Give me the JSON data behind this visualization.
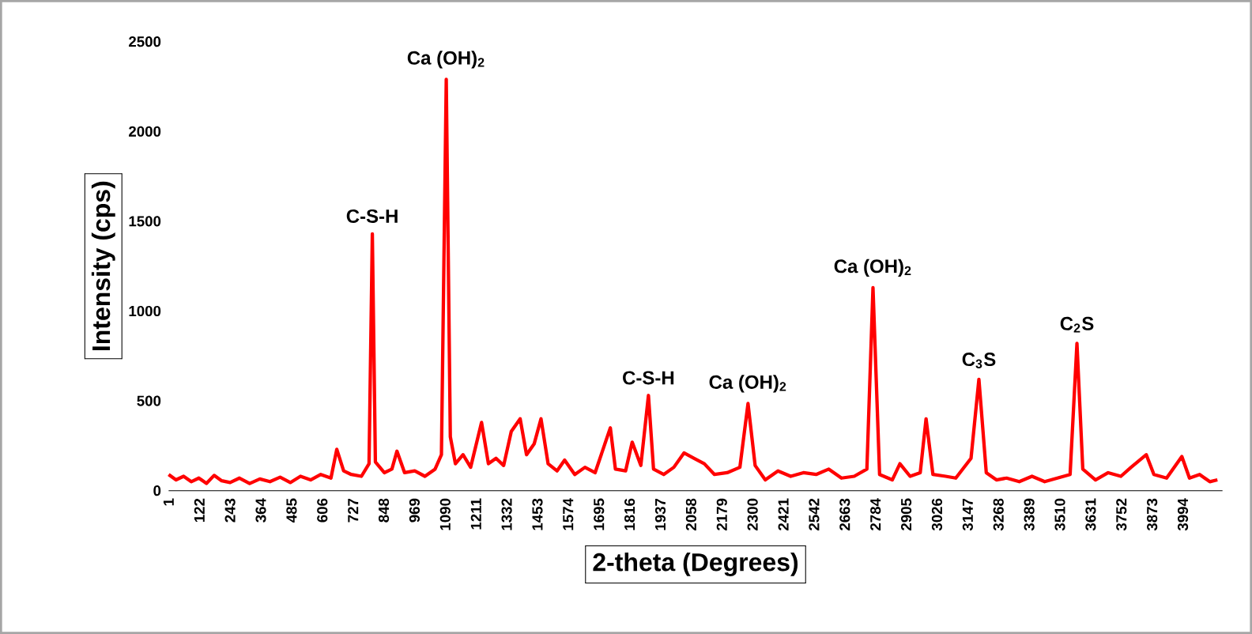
{
  "chart_data": {
    "type": "line",
    "xlabel": "2-theta (Degrees)",
    "ylabel": "Intensity (cps)",
    "xlim": [
      1,
      4150
    ],
    "ylim": [
      0,
      2500
    ],
    "xticks": [
      1,
      122,
      243,
      364,
      485,
      606,
      727,
      848,
      969,
      1090,
      1211,
      1332,
      1453,
      1574,
      1695,
      1816,
      1937,
      2058,
      2179,
      2300,
      2421,
      2542,
      2663,
      2784,
      2905,
      3026,
      3147,
      3268,
      3389,
      3510,
      3631,
      3752,
      3873,
      3994
    ],
    "yticks": [
      0,
      500,
      1000,
      1500,
      2000,
      2500
    ],
    "grid": false,
    "marker": "none",
    "line_style": "solid",
    "series": [
      {
        "color": "#ff0000",
        "x": [
          1,
          30,
          60,
          90,
          120,
          150,
          180,
          210,
          243,
          280,
          320,
          360,
          400,
          440,
          480,
          520,
          560,
          600,
          640,
          663,
          690,
          720,
          760,
          790,
          803,
          815,
          850,
          880,
          900,
          930,
          970,
          1010,
          1050,
          1075,
          1094,
          1110,
          1130,
          1160,
          1190,
          1233,
          1260,
          1290,
          1320,
          1350,
          1385,
          1410,
          1440,
          1467,
          1495,
          1530,
          1560,
          1600,
          1640,
          1680,
          1740,
          1760,
          1800,
          1826,
          1860,
          1890,
          1910,
          1950,
          1990,
          2030,
          2070,
          2110,
          2150,
          2200,
          2250,
          2282,
          2310,
          2350,
          2400,
          2450,
          2500,
          2550,
          2600,
          2650,
          2700,
          2750,
          2774,
          2800,
          2850,
          2880,
          2920,
          2960,
          2983,
          3010,
          3060,
          3100,
          3160,
          3191,
          3220,
          3260,
          3300,
          3350,
          3400,
          3450,
          3500,
          3550,
          3577,
          3600,
          3650,
          3700,
          3750,
          3790,
          3850,
          3880,
          3930,
          3990,
          4020,
          4060,
          4100,
          4130
        ],
        "values": [
          90,
          60,
          80,
          50,
          70,
          40,
          85,
          55,
          45,
          70,
          40,
          65,
          50,
          75,
          45,
          80,
          60,
          90,
          70,
          230,
          110,
          90,
          80,
          150,
          1430,
          160,
          100,
          120,
          220,
          100,
          110,
          80,
          120,
          200,
          2290,
          300,
          150,
          200,
          130,
          380,
          150,
          180,
          140,
          330,
          400,
          200,
          260,
          400,
          150,
          110,
          170,
          90,
          130,
          100,
          350,
          120,
          110,
          270,
          140,
          530,
          120,
          90,
          130,
          210,
          180,
          150,
          90,
          100,
          130,
          485,
          140,
          60,
          110,
          80,
          100,
          90,
          120,
          70,
          80,
          120,
          1130,
          90,
          60,
          150,
          80,
          100,
          400,
          90,
          80,
          70,
          180,
          620,
          100,
          60,
          70,
          50,
          80,
          50,
          70,
          90,
          820,
          120,
          60,
          100,
          80,
          130,
          200,
          90,
          70,
          190,
          70,
          90,
          50,
          60
        ]
      }
    ],
    "annotations": [
      {
        "text": "C-S-H",
        "x": 803,
        "y": 1430
      },
      {
        "text": "Ca (OH)$_{2}$",
        "x": 1094,
        "y": 2290
      },
      {
        "text": "C-S-H",
        "x": 1890,
        "y": 530
      },
      {
        "text": "Ca (OH)$_{2}$",
        "x": 2282,
        "y": 485
      },
      {
        "text": "Ca (OH)$_{2}$",
        "x": 2774,
        "y": 1130
      },
      {
        "text": "C$_{3}$S",
        "x": 3191,
        "y": 620
      },
      {
        "text": "C$_{2}$S",
        "x": 3577,
        "y": 820
      }
    ]
  }
}
